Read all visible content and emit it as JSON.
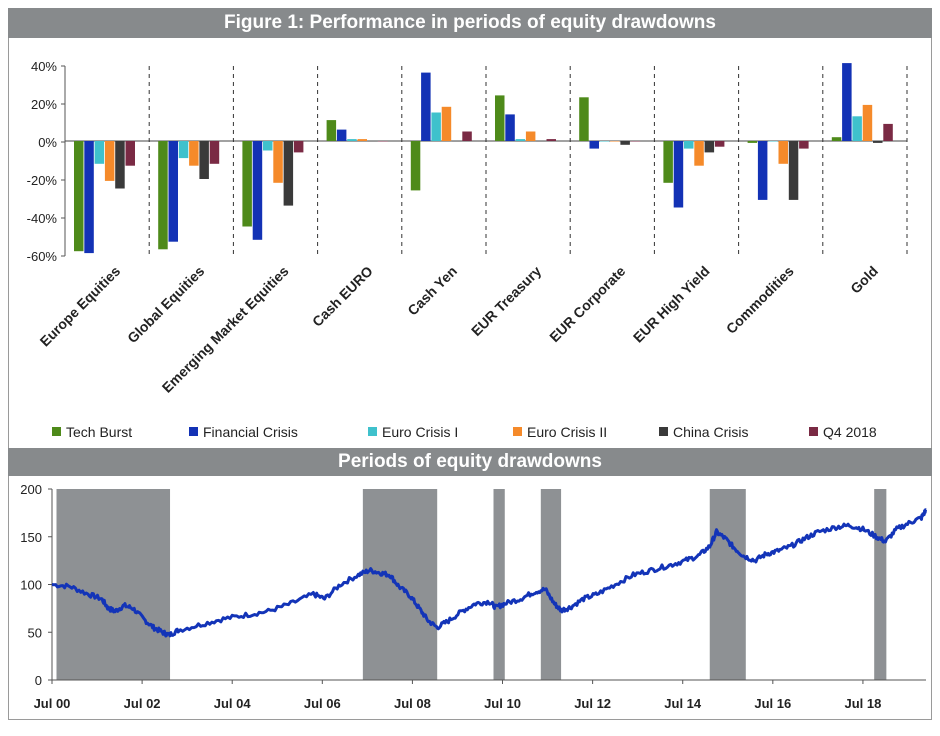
{
  "chart_data": [
    {
      "type": "bar",
      "title": "Figure 1: Performance in periods of equity drawdowns",
      "categories": [
        "Europe Equities",
        "Global Equities",
        "Emerging Market Equities",
        "Cash EURO",
        "Cash Yen",
        "EUR Treasury",
        "EUR Corporate",
        "EUR High Yield",
        "Commodities",
        "Gold"
      ],
      "series": [
        {
          "name": "Tech Burst",
          "color": "#4e8a1a",
          "values": [
            -58,
            -57,
            -45,
            11,
            -26,
            24,
            23,
            -22,
            -1,
            2
          ]
        },
        {
          "name": "Financial Crisis",
          "color": "#1332b5",
          "values": [
            -59,
            -53,
            -52,
            6,
            36,
            14,
            -4,
            -35,
            -31,
            41
          ]
        },
        {
          "name": "Euro Crisis I",
          "color": "#3fc1cc",
          "values": [
            -12,
            -9,
            -5,
            1,
            15,
            1,
            0,
            -4,
            0,
            13
          ]
        },
        {
          "name": "Euro Crisis II",
          "color": "#f58a2a",
          "values": [
            -21,
            -13,
            -22,
            1,
            18,
            5,
            0,
            -13,
            -12,
            19
          ]
        },
        {
          "name": "China Crisis",
          "color": "#3a3a3a",
          "values": [
            -25,
            -20,
            -34,
            0,
            0,
            0,
            -2,
            -6,
            -31,
            -1
          ]
        },
        {
          "name": "Q4 2018",
          "color": "#7a2a44",
          "values": [
            -13,
            -12,
            -6,
            0,
            5,
            1,
            0,
            -3,
            -4,
            9
          ]
        }
      ],
      "yticks": [
        "40%",
        "20%",
        "0%",
        "-20%",
        "-40%",
        "-60%"
      ],
      "ylim": [
        -60,
        40
      ],
      "legend": "bottom"
    },
    {
      "type": "line",
      "title": "Periods of equity drawdowns",
      "xticks": [
        "Jul 00",
        "Jul 02",
        "Jul 04",
        "Jul 06",
        "Jul 08",
        "Jul 10",
        "Jul 12",
        "Jul 14",
        "Jul 16",
        "Jul 18"
      ],
      "yticks": [
        "200",
        "150",
        "100",
        "50",
        "0"
      ],
      "ylim": [
        0,
        200
      ],
      "x_range_years": [
        2000.5,
        2019.9
      ],
      "line_color": "#1334b8",
      "shade_color": "#8e9194",
      "shaded_periods": [
        [
          2000.6,
          2003.12
        ],
        [
          2007.4,
          2009.05
        ],
        [
          2010.3,
          2010.55
        ],
        [
          2011.35,
          2011.8
        ],
        [
          2015.1,
          2015.9
        ],
        [
          2018.75,
          2019.02
        ]
      ],
      "points": [
        [
          2000.5,
          100
        ],
        [
          2000.9,
          98
        ],
        [
          2001.3,
          90
        ],
        [
          2001.6,
          85
        ],
        [
          2001.75,
          75
        ],
        [
          2001.9,
          72
        ],
        [
          2002.1,
          78
        ],
        [
          2002.3,
          75
        ],
        [
          2002.55,
          63
        ],
        [
          2002.75,
          55
        ],
        [
          2002.95,
          50
        ],
        [
          2003.1,
          47
        ],
        [
          2003.3,
          52
        ],
        [
          2003.8,
          58
        ],
        [
          2004.3,
          64
        ],
        [
          2004.8,
          68
        ],
        [
          2005.3,
          72
        ],
        [
          2005.8,
          80
        ],
        [
          2006.3,
          90
        ],
        [
          2006.55,
          85
        ],
        [
          2006.9,
          100
        ],
        [
          2007.3,
          110
        ],
        [
          2007.55,
          115
        ],
        [
          2007.8,
          112
        ],
        [
          2008.0,
          110
        ],
        [
          2008.2,
          98
        ],
        [
          2008.45,
          88
        ],
        [
          2008.65,
          75
        ],
        [
          2008.85,
          62
        ],
        [
          2009.05,
          55
        ],
        [
          2009.3,
          62
        ],
        [
          2009.6,
          72
        ],
        [
          2009.9,
          80
        ],
        [
          2010.2,
          82
        ],
        [
          2010.35,
          76
        ],
        [
          2010.55,
          80
        ],
        [
          2010.9,
          85
        ],
        [
          2011.2,
          92
        ],
        [
          2011.45,
          95
        ],
        [
          2011.65,
          80
        ],
        [
          2011.8,
          73
        ],
        [
          2012.0,
          76
        ],
        [
          2012.3,
          85
        ],
        [
          2012.6,
          90
        ],
        [
          2013.0,
          100
        ],
        [
          2013.4,
          110
        ],
        [
          2013.8,
          115
        ],
        [
          2014.2,
          120
        ],
        [
          2014.55,
          125
        ],
        [
          2014.85,
          130
        ],
        [
          2015.1,
          140
        ],
        [
          2015.25,
          155
        ],
        [
          2015.45,
          148
        ],
        [
          2015.65,
          138
        ],
        [
          2015.85,
          130
        ],
        [
          2016.1,
          125
        ],
        [
          2016.35,
          132
        ],
        [
          2016.6,
          135
        ],
        [
          2016.9,
          140
        ],
        [
          2017.2,
          148
        ],
        [
          2017.5,
          155
        ],
        [
          2017.9,
          160
        ],
        [
          2018.2,
          162
        ],
        [
          2018.5,
          158
        ],
        [
          2018.8,
          150
        ],
        [
          2019.0,
          145
        ],
        [
          2019.25,
          158
        ],
        [
          2019.55,
          165
        ],
        [
          2019.8,
          170
        ],
        [
          2019.9,
          178
        ]
      ]
    }
  ]
}
